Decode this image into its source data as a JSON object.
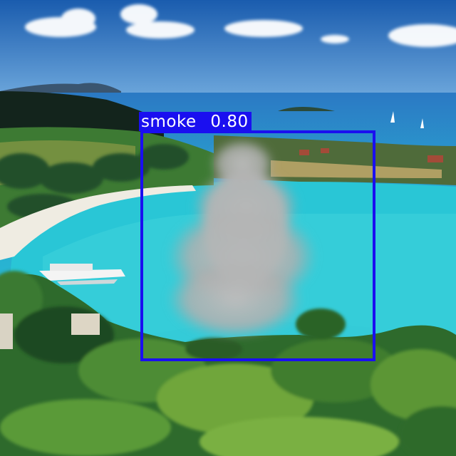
{
  "detection": {
    "class_label": "smoke",
    "confidence": "0.80",
    "box_color": "#1a0ff0",
    "label_text_color": "#ffffff"
  },
  "scene": {
    "description_colors": {
      "sky_top": "#1a5cae",
      "sky_bottom": "#6fa9dd",
      "sea": "#25c6d4",
      "shallow": "#4fe0e6",
      "beach": "#f0eee4",
      "vegetation_dark": "#1f4a22",
      "vegetation_light": "#6fa63a",
      "smoke": "#b4b4b4"
    }
  }
}
